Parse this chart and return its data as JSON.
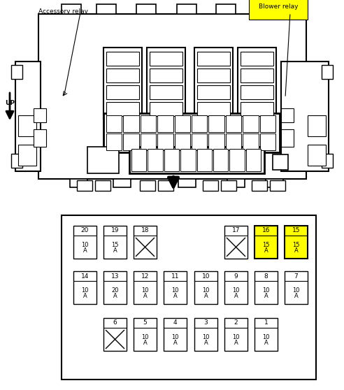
{
  "bg_color": "#ffffff",
  "fig_width": 4.92,
  "fig_height": 5.58,
  "labels": {
    "accessory": "Accessory relay",
    "blower": "Blower relay",
    "up": "UP"
  },
  "fuse_rows": {
    "row1": [
      {
        "num": "20",
        "amp": "10",
        "col": 0,
        "crossed": false,
        "yellow": false
      },
      {
        "num": "19",
        "amp": "15",
        "col": 1,
        "crossed": false,
        "yellow": false
      },
      {
        "num": "18",
        "amp": "",
        "col": 2,
        "crossed": true,
        "yellow": false
      },
      {
        "num": "17",
        "amp": "",
        "col": 5,
        "crossed": true,
        "yellow": false
      },
      {
        "num": "16",
        "amp": "15",
        "col": 6,
        "crossed": false,
        "yellow": true
      },
      {
        "num": "15",
        "amp": "15",
        "col": 7,
        "crossed": false,
        "yellow": true
      }
    ],
    "row2": [
      {
        "num": "14",
        "amp": "10",
        "col": 0,
        "crossed": false,
        "yellow": false
      },
      {
        "num": "13",
        "amp": "20",
        "col": 1,
        "crossed": false,
        "yellow": false
      },
      {
        "num": "12",
        "amp": "10",
        "col": 2,
        "crossed": false,
        "yellow": false
      },
      {
        "num": "11",
        "amp": "10",
        "col": 3,
        "crossed": false,
        "yellow": false
      },
      {
        "num": "10",
        "amp": "10",
        "col": 4,
        "crossed": false,
        "yellow": false
      },
      {
        "num": "9",
        "amp": "10",
        "col": 5,
        "crossed": false,
        "yellow": false
      },
      {
        "num": "8",
        "amp": "10",
        "col": 6,
        "crossed": false,
        "yellow": false
      },
      {
        "num": "7",
        "amp": "10",
        "col": 7,
        "crossed": false,
        "yellow": false
      }
    ],
    "row3": [
      {
        "num": "6",
        "amp": "",
        "col": 1,
        "crossed": true,
        "yellow": false
      },
      {
        "num": "5",
        "amp": "10",
        "col": 2,
        "crossed": false,
        "yellow": false
      },
      {
        "num": "4",
        "amp": "10",
        "col": 3,
        "crossed": false,
        "yellow": false
      },
      {
        "num": "3",
        "amp": "10",
        "col": 4,
        "crossed": false,
        "yellow": false
      },
      {
        "num": "2",
        "amp": "10",
        "col": 5,
        "crossed": false,
        "yellow": false
      },
      {
        "num": "1",
        "amp": "10",
        "col": 6,
        "crossed": false,
        "yellow": false
      }
    ]
  }
}
